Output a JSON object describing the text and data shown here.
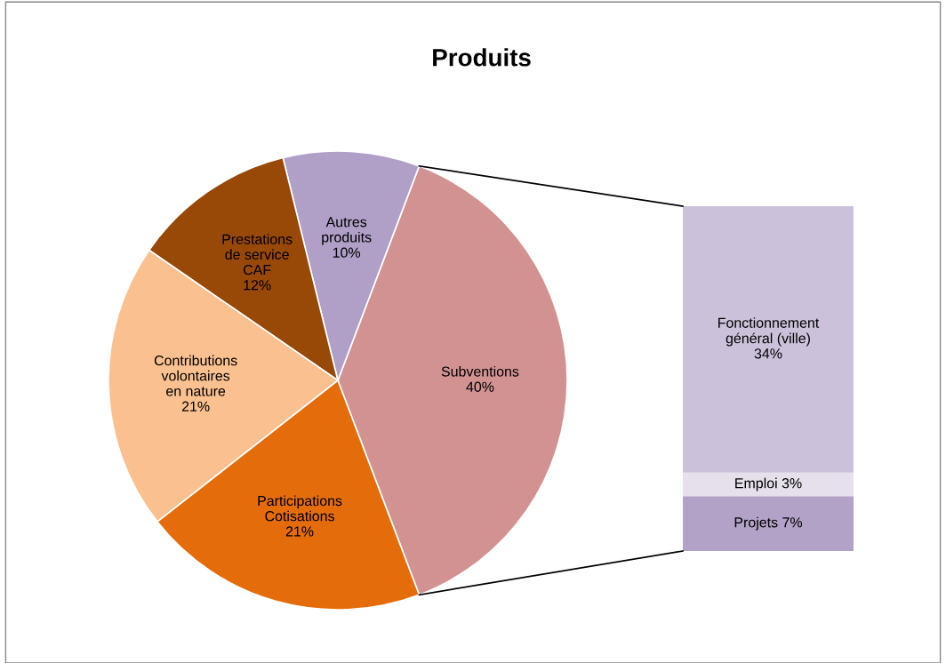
{
  "chart_data": [
    {
      "type": "pie",
      "title": "Produits",
      "categories": [
        "Subventions",
        "Autres\nproduits",
        "Prestations\nde service\nCAF",
        "Contributions\nvolontaires\nen nature",
        "Participations\nCotisations"
      ],
      "values": [
        40,
        10,
        12,
        21,
        21
      ],
      "colors": [
        "#d39292",
        "#b0a0c8",
        "#984807",
        "#fac090",
        "#e46c0a"
      ],
      "value_labels": [
        "40%",
        "10%",
        "12%",
        "21%",
        "21%"
      ],
      "legend": false
    },
    {
      "type": "bar",
      "stacked": true,
      "categories": [
        null
      ],
      "series": [
        {
          "name": "Projets",
          "color": "#b3a2c7",
          "values": [
            7
          ],
          "value_labels": [
            "7%"
          ]
        },
        {
          "name": "Emploi",
          "color": "#e6e0ec",
          "values": [
            3
          ],
          "value_labels": [
            "3%"
          ]
        },
        {
          "name": "Fonctionnement\ngénéral (ville)",
          "color": "#ccc1da",
          "values": [
            34
          ],
          "value_labels": [
            "34%"
          ]
        }
      ],
      "legend": false
    }
  ]
}
